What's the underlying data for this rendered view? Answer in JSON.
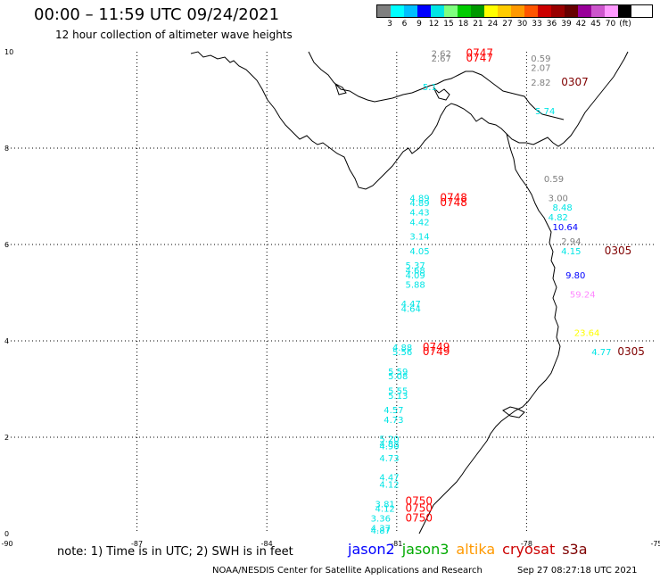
{
  "title": "00:00 – 11:59 UTC 09/24/2021",
  "subtitle": "12 hour collection of altimeter wave heights",
  "legend": {
    "colors": [
      "#7f7f7f",
      "#00ffff",
      "#00bfff",
      "#0000ff",
      "#00e5e5",
      "#7fff7f",
      "#00cc00",
      "#009900",
      "#ffff00",
      "#ffcc00",
      "#ff9900",
      "#ff5500",
      "#cc0000",
      "#990000",
      "#660000",
      "#990099",
      "#cc55cc",
      "#ff99ff",
      "#000000"
    ],
    "labels": [
      "3",
      "6",
      "9",
      "12",
      "15",
      "18",
      "21",
      "24",
      "27",
      "30",
      "33",
      "36",
      "39",
      "42",
      "45",
      "70",
      "(ft)"
    ]
  },
  "axes": {
    "x_ticks": [
      "-90",
      "-87",
      "-84",
      "-81",
      "-78",
      "-75"
    ],
    "y_ticks": [
      "10",
      "8",
      "6",
      "4",
      "2",
      "0"
    ]
  },
  "swh_labels": [
    {
      "text": "2.62",
      "lon": -80.2,
      "lat": 9.9,
      "color": "#7f7f7f"
    },
    {
      "text": "2.67",
      "lon": -80.2,
      "lat": 9.8,
      "color": "#7f7f7f"
    },
    {
      "text": "0747",
      "lon": -79.4,
      "lat": 9.9,
      "color": "#ff0000"
    },
    {
      "text": "0747",
      "lon": -79.4,
      "lat": 9.8,
      "color": "#ff0000"
    },
    {
      "text": "0.59",
      "lon": -77.9,
      "lat": 9.8,
      "color": "#7f7f7f"
    },
    {
      "text": "2.07",
      "lon": -77.9,
      "lat": 9.6,
      "color": "#7f7f7f"
    },
    {
      "text": "2.82",
      "lon": -77.9,
      "lat": 9.3,
      "color": "#7f7f7f"
    },
    {
      "text": "0307",
      "lon": -77.2,
      "lat": 9.3,
      "color": "#7f0000"
    },
    {
      "text": "5.1",
      "lon": -80.4,
      "lat": 9.2,
      "color": "#00e5e5"
    },
    {
      "text": "5.74",
      "lon": -77.8,
      "lat": 8.7,
      "color": "#00e5e5"
    },
    {
      "text": "0.59",
      "lon": -77.6,
      "lat": 7.3,
      "color": "#7f7f7f"
    },
    {
      "text": "3.00",
      "lon": -77.5,
      "lat": 6.9,
      "color": "#7f7f7f"
    },
    {
      "text": "4.89",
      "lon": -80.7,
      "lat": 6.9,
      "color": "#00e5e5"
    },
    {
      "text": "4.89",
      "lon": -80.7,
      "lat": 6.8,
      "color": "#00e5e5"
    },
    {
      "text": "0748",
      "lon": -80.0,
      "lat": 6.9,
      "color": "#ff0000"
    },
    {
      "text": "0748",
      "lon": -80.0,
      "lat": 6.8,
      "color": "#ff0000"
    },
    {
      "text": "8.48",
      "lon": -77.4,
      "lat": 6.7,
      "color": "#00e5e5"
    },
    {
      "text": "4.43",
      "lon": -80.7,
      "lat": 6.6,
      "color": "#00e5e5"
    },
    {
      "text": "4.42",
      "lon": -80.7,
      "lat": 6.4,
      "color": "#00e5e5"
    },
    {
      "text": "4.82",
      "lon": -77.5,
      "lat": 6.5,
      "color": "#00e5e5"
    },
    {
      "text": "10.64",
      "lon": -77.4,
      "lat": 6.3,
      "color": "#0000ff"
    },
    {
      "text": "3.14",
      "lon": -80.7,
      "lat": 6.1,
      "color": "#00e5e5"
    },
    {
      "text": "2.94",
      "lon": -77.2,
      "lat": 6.0,
      "color": "#7f7f7f"
    },
    {
      "text": "4.05",
      "lon": -80.7,
      "lat": 5.8,
      "color": "#00e5e5"
    },
    {
      "text": "4.15",
      "lon": -77.2,
      "lat": 5.8,
      "color": "#00e5e5"
    },
    {
      "text": "0305",
      "lon": -76.2,
      "lat": 5.8,
      "color": "#7f0000"
    },
    {
      "text": "5.37",
      "lon": -80.8,
      "lat": 5.5,
      "color": "#00e5e5"
    },
    {
      "text": "4.68",
      "lon": -80.8,
      "lat": 5.4,
      "color": "#00e5e5"
    },
    {
      "text": "4.09",
      "lon": -80.8,
      "lat": 5.3,
      "color": "#00e5e5"
    },
    {
      "text": "9.80",
      "lon": -77.1,
      "lat": 5.3,
      "color": "#0000ff"
    },
    {
      "text": "5.88",
      "lon": -80.8,
      "lat": 5.1,
      "color": "#00e5e5"
    },
    {
      "text": "59.24",
      "lon": -77.0,
      "lat": 4.9,
      "color": "#ff88ff"
    },
    {
      "text": "4.47",
      "lon": -80.9,
      "lat": 4.7,
      "color": "#00e5e5"
    },
    {
      "text": "4.64",
      "lon": -80.9,
      "lat": 4.6,
      "color": "#00e5e5"
    },
    {
      "text": "23.64",
      "lon": -76.9,
      "lat": 4.1,
      "color": "#ffff00"
    },
    {
      "text": "4.88",
      "lon": -81.1,
      "lat": 3.8,
      "color": "#00e5e5"
    },
    {
      "text": "5.56",
      "lon": -81.1,
      "lat": 3.7,
      "color": "#00e5e5"
    },
    {
      "text": "0749",
      "lon": -80.4,
      "lat": 3.8,
      "color": "#ff0000"
    },
    {
      "text": "0749",
      "lon": -80.4,
      "lat": 3.7,
      "color": "#ff0000"
    },
    {
      "text": "4.77",
      "lon": -76.5,
      "lat": 3.7,
      "color": "#00e5e5"
    },
    {
      "text": "0305",
      "lon": -75.9,
      "lat": 3.7,
      "color": "#7f0000"
    },
    {
      "text": "5.59",
      "lon": -81.2,
      "lat": 3.3,
      "color": "#00e5e5"
    },
    {
      "text": "5.08",
      "lon": -81.2,
      "lat": 3.2,
      "color": "#00e5e5"
    },
    {
      "text": "5.55",
      "lon": -81.2,
      "lat": 2.9,
      "color": "#00e5e5"
    },
    {
      "text": "5.13",
      "lon": -81.2,
      "lat": 2.8,
      "color": "#00e5e5"
    },
    {
      "text": "4.57",
      "lon": -81.3,
      "lat": 2.5,
      "color": "#00e5e5"
    },
    {
      "text": "4.73",
      "lon": -81.3,
      "lat": 2.3,
      "color": "#00e5e5"
    },
    {
      "text": "5.20",
      "lon": -81.4,
      "lat": 1.9,
      "color": "#00e5e5"
    },
    {
      "text": "4.88",
      "lon": -81.4,
      "lat": 1.8,
      "color": "#00e5e5"
    },
    {
      "text": "4.90",
      "lon": -81.4,
      "lat": 1.75,
      "color": "#00e5e5"
    },
    {
      "text": "4.73",
      "lon": -81.4,
      "lat": 1.5,
      "color": "#00e5e5"
    },
    {
      "text": "4.47",
      "lon": -81.4,
      "lat": 1.1,
      "color": "#00e5e5"
    },
    {
      "text": "4.12",
      "lon": -81.4,
      "lat": 0.95,
      "color": "#00e5e5"
    },
    {
      "text": "0750",
      "lon": -80.8,
      "lat": 0.6,
      "color": "#ff0000"
    },
    {
      "text": "3.81",
      "lon": -81.5,
      "lat": 0.55,
      "color": "#00e5e5"
    },
    {
      "text": "4.12",
      "lon": -81.5,
      "lat": 0.45,
      "color": "#00e5e5"
    },
    {
      "text": "0750",
      "lon": -80.8,
      "lat": 0.45,
      "color": "#ff0000"
    },
    {
      "text": "3.36",
      "lon": -81.6,
      "lat": 0.25,
      "color": "#00e5e5"
    },
    {
      "text": "0750",
      "lon": -80.8,
      "lat": 0.25,
      "color": "#ff0000"
    },
    {
      "text": "4.37",
      "lon": -81.6,
      "lat": 0.05,
      "color": "#00e5e5"
    },
    {
      "text": "4.87",
      "lon": -81.6,
      "lat": 0.0,
      "color": "#00e5e5"
    }
  ],
  "footnote": "note:  1) Time is in UTC;  2) SWH is in feet",
  "satellites": [
    {
      "name": "jason2",
      "color": "#0000ff"
    },
    {
      "name": "jason3",
      "color": "#00aa00"
    },
    {
      "name": "altika",
      "color": "#ff9900"
    },
    {
      "name": "cryosat",
      "color": "#cc0000"
    },
    {
      "name": "s3a",
      "color": "#7f0000"
    }
  ],
  "credit": "NOAA/NESDIS Center for Satellite Applications and Research",
  "timestamp": "Sep 27 08:27:18 UTC 2021"
}
